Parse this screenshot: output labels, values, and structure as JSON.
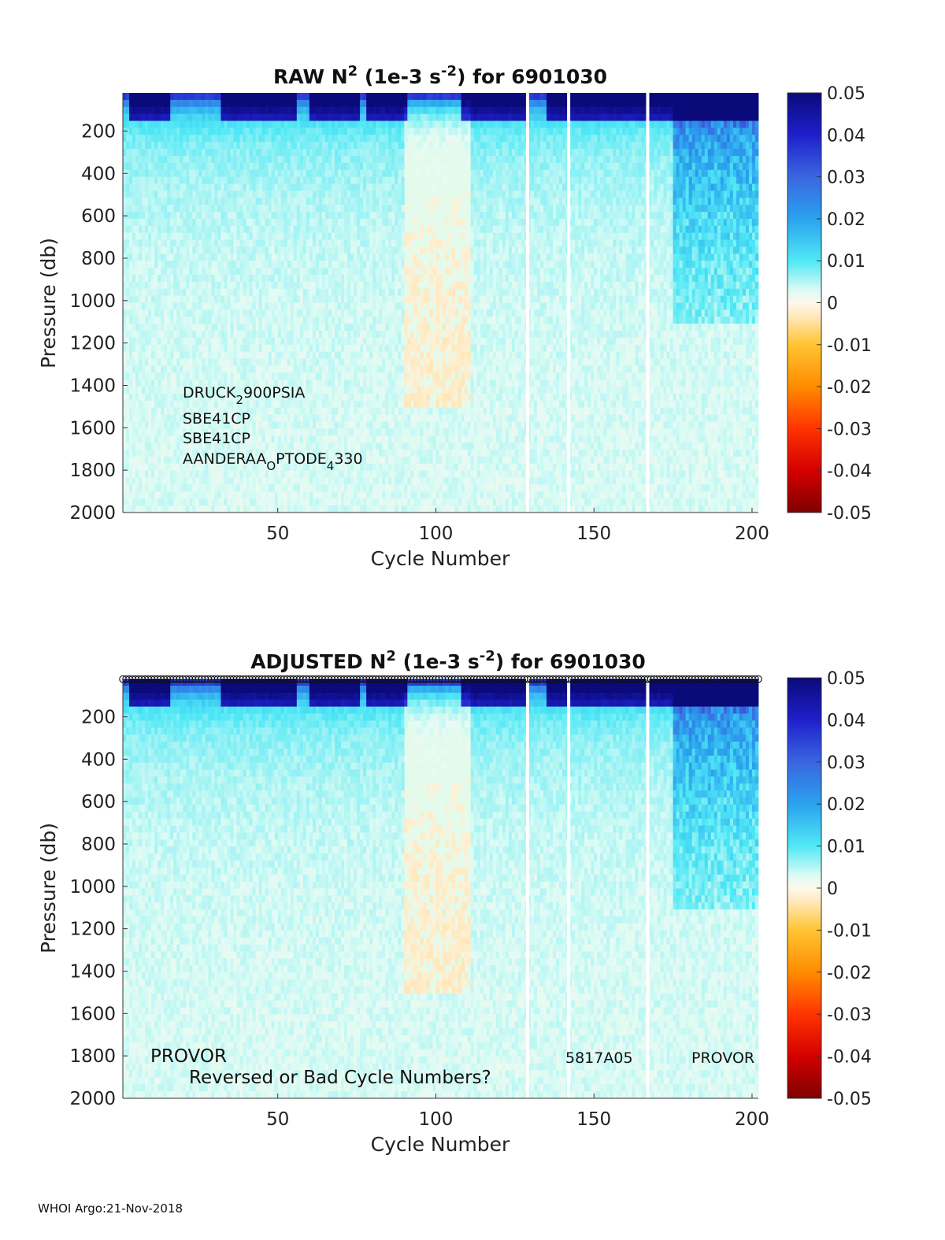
{
  "footer": "WHOI Argo:21-Nov-2018",
  "chart_data": [
    {
      "type": "heatmap",
      "title": {
        "prefix": "RAW N",
        "sup": "2",
        "mid": " (1e-3 s",
        "sup2": "-2",
        "suffix": ") for 6901030"
      },
      "xlabel": "Cycle Number",
      "ylabel": "Pressure (db)",
      "xlim": [
        1,
        202
      ],
      "ylim": [
        2000,
        20
      ],
      "x_ticks": [
        50,
        100,
        150,
        200
      ],
      "y_ticks": [
        200,
        400,
        600,
        800,
        1000,
        1200,
        1400,
        1600,
        1800,
        2000
      ],
      "colorbar": {
        "min": -0.05,
        "max": 0.05,
        "ticks": [
          "0.05",
          "0.04",
          "0.03",
          "0.02",
          "0.01",
          "0",
          "-0.01",
          "-0.02",
          "-0.03",
          "-0.04",
          "-0.05"
        ]
      },
      "sensor_labels": [
        {
          "main": "DRUCK",
          "sub": "2",
          "rest": "900PSIA"
        },
        {
          "main": "SBE41CP",
          "sub": "",
          "rest": ""
        },
        {
          "main": "SBE41CP",
          "sub": "",
          "rest": ""
        },
        {
          "main": "AANDERAA",
          "sub": "O",
          "rest": "PTODE",
          "sub2": "4",
          "rest2": "330"
        }
      ],
      "gap_cycles": [
        129,
        142,
        167
      ],
      "strong_surface_stratification_cycles": [
        [
          3,
          15
        ],
        [
          32,
          55
        ],
        [
          60,
          75
        ],
        [
          78,
          90
        ],
        [
          108,
          128
        ],
        [
          135,
          202
        ]
      ],
      "deep_stratification_cycles": [
        [
          175,
          202
        ]
      ],
      "negative_n2_band_cycles": [
        [
          90,
          110
        ]
      ]
    },
    {
      "type": "heatmap",
      "title": {
        "prefix": "ADJUSTED N",
        "sup": "2",
        "mid": " (1e-3 s",
        "sup2": "-2",
        "suffix": ") for 6901030"
      },
      "xlabel": "Cycle Number",
      "ylabel": "Pressure (db)",
      "xlim": [
        1,
        202
      ],
      "ylim": [
        2000,
        20
      ],
      "x_ticks": [
        50,
        100,
        150,
        200
      ],
      "y_ticks": [
        200,
        400,
        600,
        800,
        1000,
        1200,
        1400,
        1600,
        1800,
        2000
      ],
      "colorbar": {
        "min": -0.05,
        "max": 0.05,
        "ticks": [
          "0.05",
          "0.04",
          "0.03",
          "0.02",
          "0.01",
          "0",
          "-0.01",
          "-0.02",
          "-0.03",
          "-0.04",
          "-0.05"
        ]
      },
      "annotations": {
        "platform_left": "PROVOR",
        "platform_right": "PROVOR",
        "float_id": "5817A05",
        "warning": "Reversed or Bad Cycle Numbers?"
      },
      "gap_cycles": [
        129,
        142,
        167
      ],
      "surface_markers": "one circle per cycle"
    }
  ]
}
